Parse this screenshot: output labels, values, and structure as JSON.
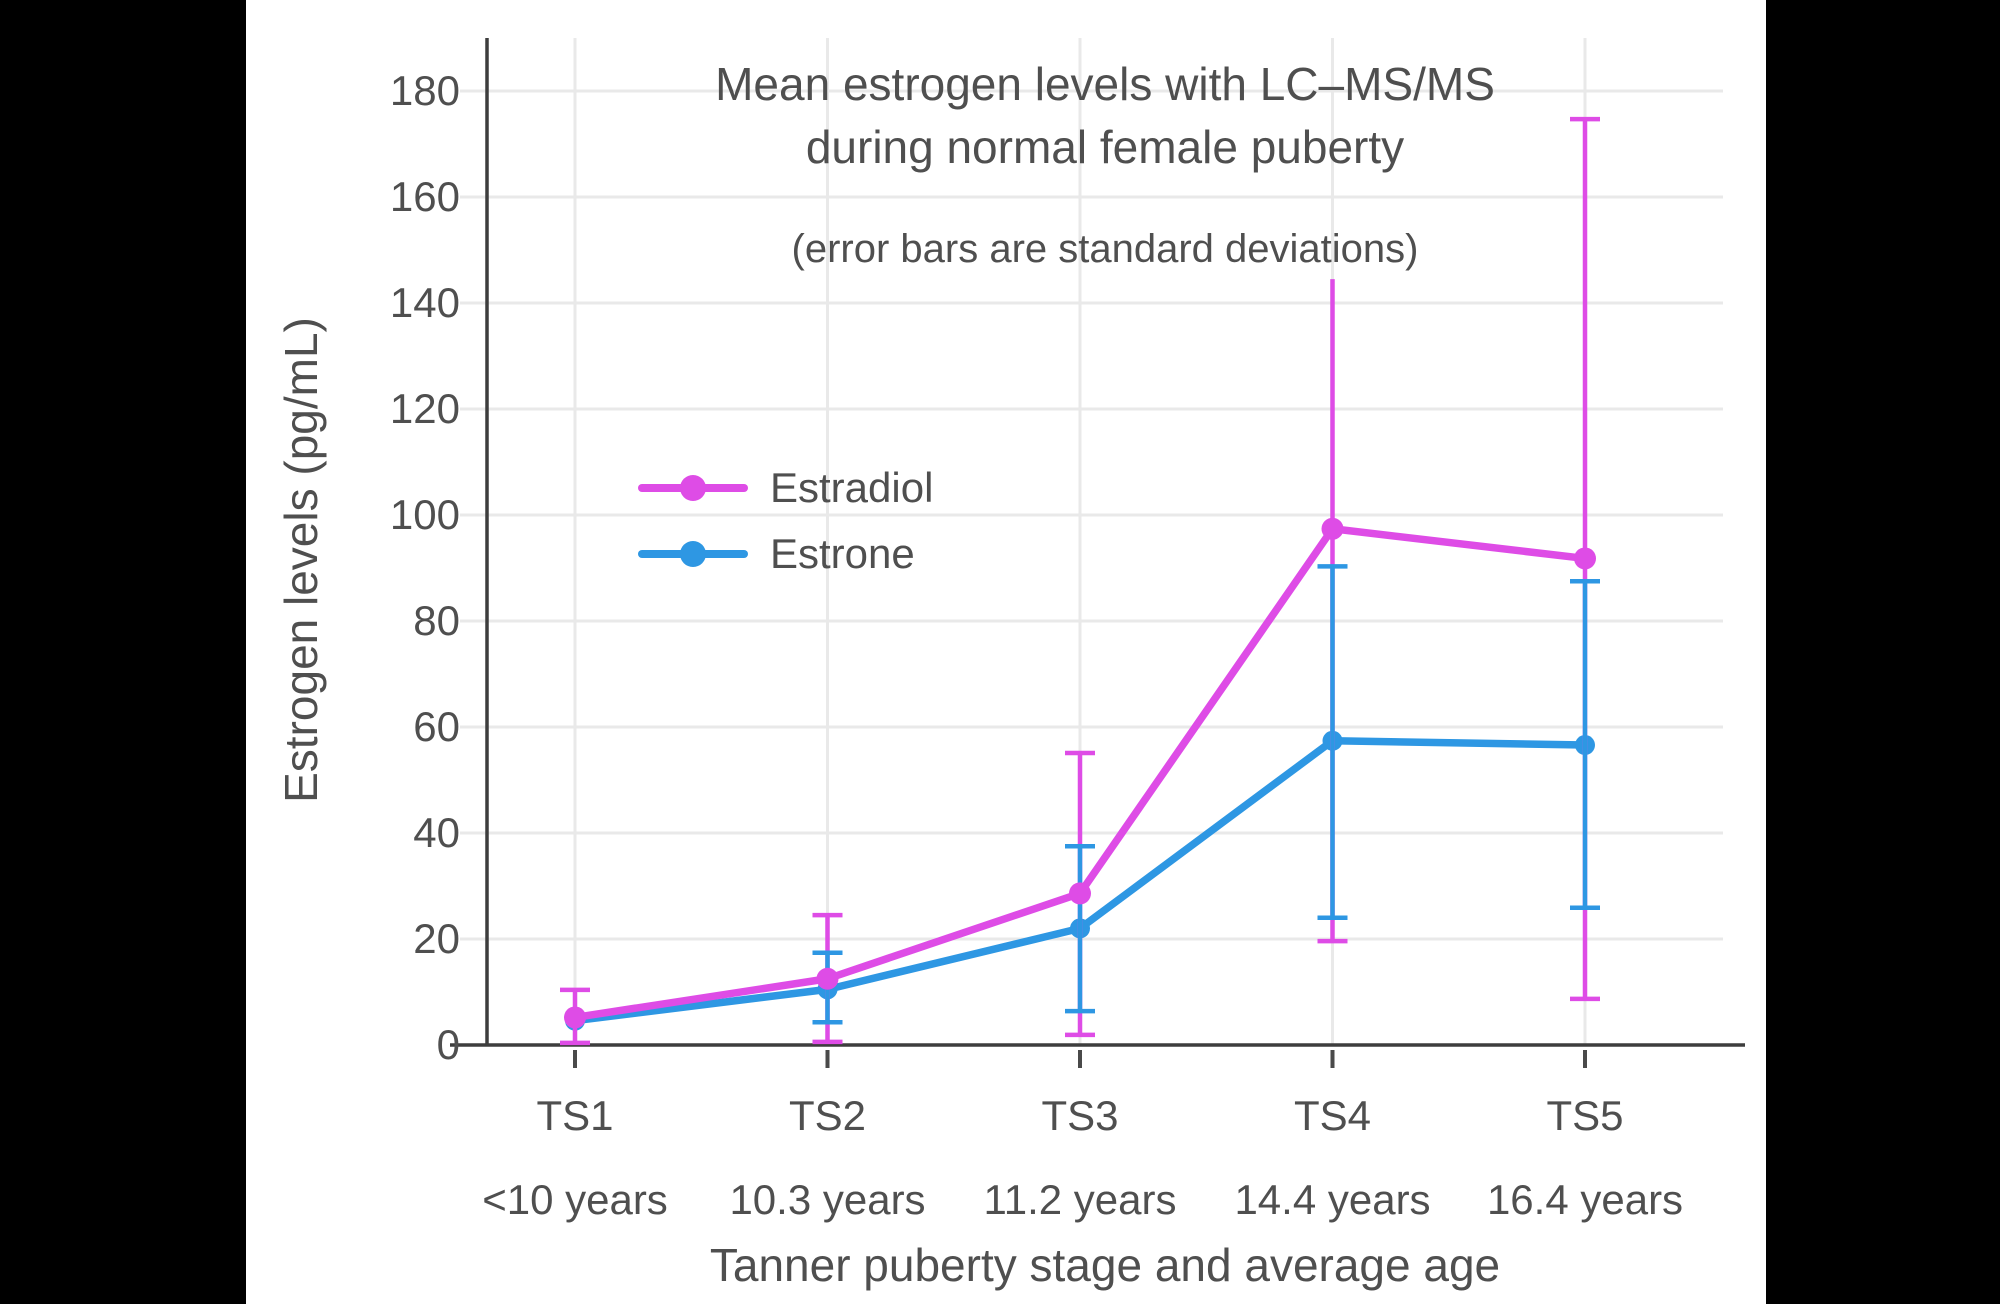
{
  "chart_data": {
    "type": "line",
    "title_line1": "Mean estrogen levels with LC–MS/MS",
    "title_line2": "during normal female puberty",
    "subtitle": "(error bars are standard deviations)",
    "xlabel": "Tanner puberty stage and average age",
    "ylabel": "Estrogen levels (pg/mL)",
    "ylim": [
      0,
      190
    ],
    "yticks": [
      0,
      20,
      40,
      60,
      80,
      100,
      120,
      140,
      160,
      180
    ],
    "grid": "on",
    "legend_position": "inside-upper-left",
    "categories": [
      {
        "stage": "TS1",
        "age": "<10 years"
      },
      {
        "stage": "TS2",
        "age": "10.3 years"
      },
      {
        "stage": "TS3",
        "age": "11.2 years"
      },
      {
        "stage": "TS4",
        "age": "14.4 years"
      },
      {
        "stage": "TS5",
        "age": "16.4 years"
      }
    ],
    "series": [
      {
        "name": "Estradiol",
        "color": "#de4ce6",
        "points": [
          {
            "mean": 5.2,
            "err_low": 0.4,
            "err_high": 10.4
          },
          {
            "mean": 12.5,
            "err_low": 0.6,
            "err_high": 24.5
          },
          {
            "mean": 28.6,
            "err_low": 1.9,
            "err_high": 55.1
          },
          {
            "mean": 97.4,
            "err_low": 19.6,
            "err_high": 144.5,
            "cap_top": false
          },
          {
            "mean": 91.8,
            "err_low": 8.7,
            "err_high": 174.7
          }
        ]
      },
      {
        "name": "Estrone",
        "color": "#2e97e3",
        "points": [
          {
            "mean": 4.6,
            "err_low": null,
            "err_high": null
          },
          {
            "mean": 10.5,
            "err_low": 4.3,
            "err_high": 17.4
          },
          {
            "mean": 22.0,
            "err_low": 6.4,
            "err_high": 37.5
          },
          {
            "mean": 57.4,
            "err_low": 24.0,
            "err_high": 90.3
          },
          {
            "mean": 56.6,
            "err_low": 25.9,
            "err_high": 87.5
          }
        ]
      }
    ],
    "colors": {
      "grid": "#e9e9e9",
      "axis": "#3d3d3d",
      "tick": "#4a4a4a",
      "text": "#4f4f4f",
      "background": "#ffffff",
      "matte": "#000000"
    }
  }
}
